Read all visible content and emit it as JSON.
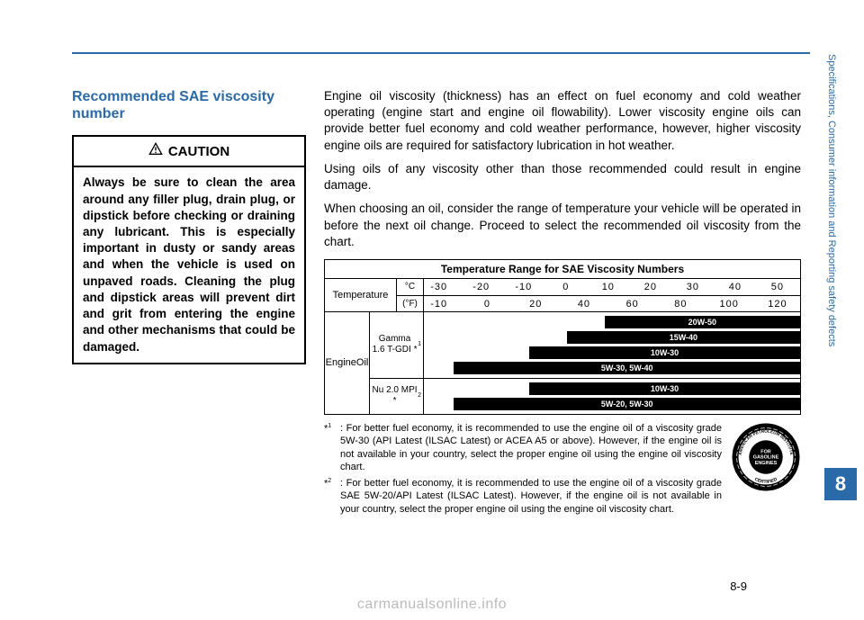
{
  "heading": "Recommended SAE viscosity number",
  "caution": {
    "title": "CAUTION",
    "body": "Always be sure to clean the area around any filler plug, drain plug, or dipstick before checking or draining any lubricant. This is especially important in dusty or sandy areas and when the vehicle is used on unpaved roads. Cleaning the plug and dipstick areas will prevent dirt and grit from entering the engine and other mechanisms that could be damaged."
  },
  "paragraphs": [
    "Engine oil viscosity (thickness) has an effect on fuel economy and cold weather operating (engine start and engine oil flowability). Lower viscosity engine oils can provide better fuel economy and cold weather performance, however, higher viscosity engine oils are required for satisfactory lubrication in hot weather.",
    "Using oils of any viscosity other than those recommended could result in engine damage.",
    "When choosing an oil, consider the range of temperature your vehicle will be operated in before the next oil change. Proceed to select the recommended oil viscosity from the chart."
  ],
  "chart": {
    "title": "Temperature Range for SAE Viscosity Numbers",
    "temp_label": "Temperature",
    "c": {
      "unit": "°C",
      "ticks": [
        "-30",
        "-20",
        "-10",
        "0",
        "10",
        "20",
        "30",
        "40",
        "50"
      ]
    },
    "f": {
      "unit": "(°F)",
      "ticks": [
        "-10",
        "0",
        "20",
        "40",
        "60",
        "80",
        "100",
        "120"
      ]
    },
    "oil_label": "Engine\nOil",
    "engines": [
      {
        "name": "Gamma 1.6 T-GDI *",
        "sup": "1",
        "bars": [
          {
            "label": "20W-50",
            "left_pct": 48,
            "right_pct": 0
          },
          {
            "label": "15W-40",
            "left_pct": 38,
            "right_pct": 0
          },
          {
            "label": "10W-30",
            "left_pct": 28,
            "right_pct": 0
          },
          {
            "label": "5W-30, 5W-40",
            "left_pct": 8,
            "right_pct": 0
          }
        ]
      },
      {
        "name": "Nu 2.0 MPI *",
        "sup": "2",
        "bars": [
          {
            "label": "10W-30",
            "left_pct": 28,
            "right_pct": 0
          },
          {
            "label": "5W-20, 5W-30",
            "left_pct": 8,
            "right_pct": 0
          }
        ]
      }
    ]
  },
  "footnotes": [
    {
      "marker": "*",
      "sup": "1",
      "text": ": For better fuel economy, it is recommended to use the engine oil of a viscosity grade 5W-30 (API Latest (ILSAC Latest) or ACEA A5 or above). However, if the engine oil is not available in your country, select the proper engine oil using the engine oil viscosity chart."
    },
    {
      "marker": "*",
      "sup": "2",
      "text": ": For better fuel economy, it is recommended to use the engine oil of a viscosity grade SAE 5W-20/API Latest (ILSAC Latest). However, if the engine oil is not available in your country, select the proper engine oil using the engine oil viscosity chart."
    }
  ],
  "api_seal": {
    "outer": "AMERICAN PETROLEUM INSTITUTE",
    "center": "FOR\nGASOLINE\nENGINES",
    "bottom": "CERTIFIED"
  },
  "sidebar_text": "Specifications, Consumer information and Reporting safety defects",
  "tab_num": "8",
  "page_num": "8-9",
  "watermark": "carmanualsonline.info"
}
